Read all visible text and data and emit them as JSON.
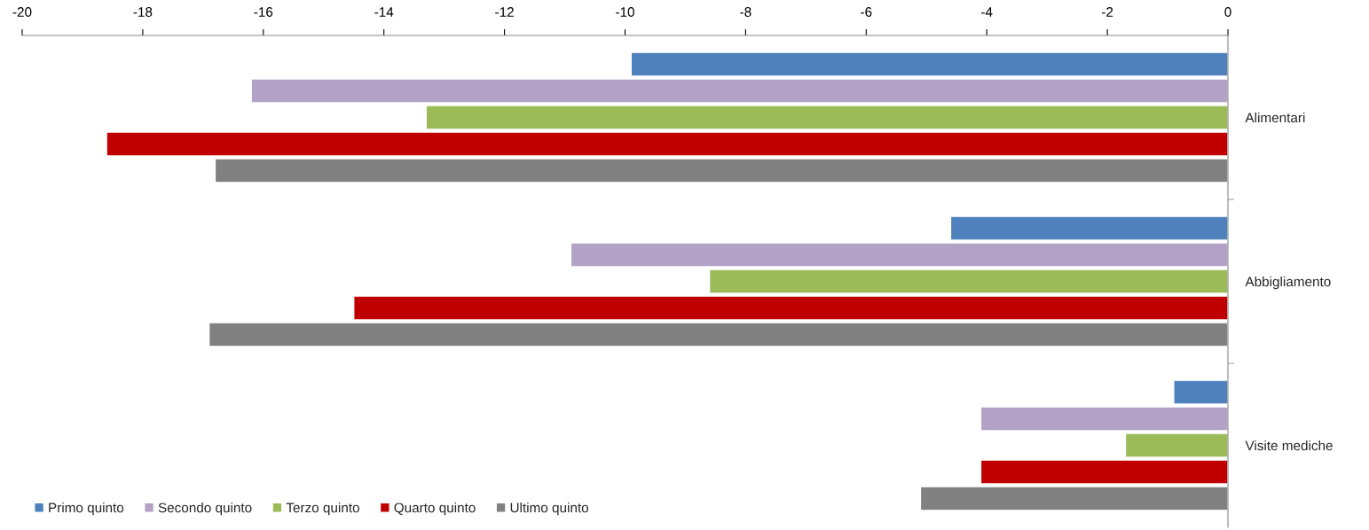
{
  "chart_data": {
    "type": "bar",
    "orientation": "horizontal",
    "categories": [
      "Alimentari",
      "Abbigliamento",
      "Visite mediche"
    ],
    "series": [
      {
        "name": "Primo quinto",
        "color": "#4f81bd",
        "values": [
          -9.9,
          -4.6,
          -0.9
        ]
      },
      {
        "name": "Secondo quinto",
        "color": "#b2a2c7",
        "values": [
          -16.2,
          -10.9,
          -4.1
        ]
      },
      {
        "name": "Terzo quinto",
        "color": "#9bbb59",
        "values": [
          -13.3,
          -8.6,
          -1.7
        ]
      },
      {
        "name": "Quarto quinto",
        "color": "#c00000",
        "values": [
          -18.6,
          -14.5,
          -4.1
        ]
      },
      {
        "name": "Ultimo quinto",
        "color": "#808080",
        "values": [
          -16.8,
          -16.9,
          -5.1
        ]
      }
    ],
    "xlim": [
      -20,
      0
    ],
    "xticks": [
      -20,
      -18,
      -16,
      -14,
      -12,
      -10,
      -8,
      -6,
      -4,
      -2,
      0
    ],
    "grid": false,
    "legend": "bottom left"
  }
}
